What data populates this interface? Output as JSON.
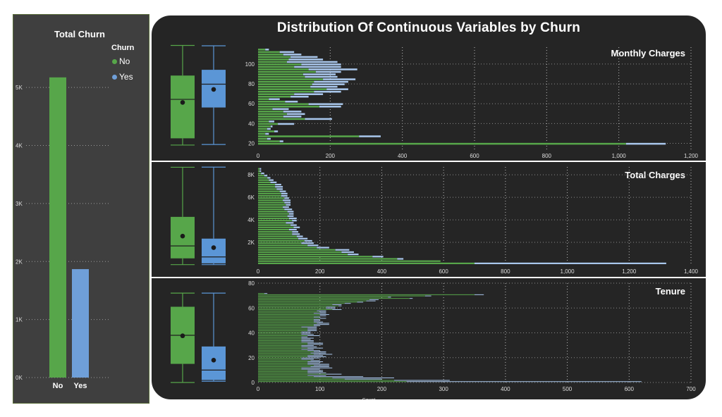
{
  "colors": {
    "no": "#57a64a",
    "yes": "#6f9fd8",
    "yes_light": "#a9c7ec",
    "panel": "#252525",
    "left_panel": "#3f3f3f",
    "grid": "#bdbdbd",
    "text": "#ffffff",
    "box_no": "#57a64a",
    "box_yes": "#5b96d6"
  },
  "main_title": "Distribution Of Continuous Variables by Churn",
  "total_churn": {
    "title": "Total Churn",
    "legend_title": "Churn",
    "legend": [
      "No",
      "Yes"
    ],
    "chart_data": {
      "type": "bar",
      "title": "Total Churn",
      "categories": [
        "No",
        "Yes"
      ],
      "values": [
        5174,
        1869
      ],
      "ylim": [
        0,
        5500
      ],
      "yticks": [
        0,
        1000,
        2000,
        3000,
        4000,
        5000
      ],
      "ytick_labels": [
        "0K",
        "1K",
        "2K",
        "3K",
        "4K",
        "5K"
      ],
      "grid": true
    }
  },
  "panels": [
    {
      "title": "Monthly Charges",
      "box": {
        "no": {
          "whisker_low": 18.3,
          "q1": 25.1,
          "median": 64.4,
          "q3": 88.4,
          "whisker_high": 118.8,
          "mean": 61.3
        },
        "yes": {
          "whisker_low": 18.9,
          "q1": 56.2,
          "median": 79.7,
          "q3": 94.2,
          "whisker_high": 118.4,
          "mean": 74.4
        }
      },
      "hist": {
        "type": "bar",
        "orientation": "horizontal",
        "y_start": 18,
        "y_step": 2.5,
        "no": [
          1020,
          60,
          25,
          280,
          20,
          45,
          25,
          35,
          55,
          30,
          130,
          70,
          80,
          70,
          40,
          170,
          140,
          75,
          30,
          90,
          100,
          155,
          190,
          145,
          150,
          155,
          180,
          130,
          125,
          160,
          140,
          100,
          120,
          80,
          85,
          90,
          70,
          60,
          20
        ],
        "yes": [
          110,
          10,
          10,
          60,
          10,
          10,
          10,
          5,
          45,
          15,
          75,
          50,
          50,
          50,
          45,
          60,
          95,
          35,
          30,
          50,
          80,
          75,
          60,
          75,
          90,
          95,
          90,
          90,
          90,
          70,
          135,
          130,
          110,
          140,
          95,
          75,
          50,
          40,
          10
        ],
        "xlim": [
          0,
          1200
        ],
        "xticks": [
          0,
          200,
          400,
          600,
          800,
          1000,
          1200
        ],
        "xtick_labels": [
          "0",
          "200",
          "400",
          "600",
          "800",
          "1,000",
          "1,200"
        ],
        "ylim": [
          14,
          117
        ],
        "yticks": [
          20,
          40,
          60,
          80,
          100
        ],
        "ytick_labels": [
          "20",
          "40",
          "60",
          "80",
          "100"
        ]
      }
    },
    {
      "title": "Total Charges",
      "box": {
        "no": {
          "whisker_low": 18.8,
          "q1": 577,
          "median": 1683,
          "q3": 4264,
          "whisker_high": 8672,
          "mean": 2555
        },
        "yes": {
          "whisker_low": 18.9,
          "q1": 134,
          "median": 704,
          "q3": 2331,
          "whisker_high": 8685,
          "mean": 1532
        }
      },
      "hist": {
        "type": "bar",
        "orientation": "horizontal",
        "y_start": 0,
        "y_step": 200,
        "no": [
          700,
          590,
          450,
          370,
          290,
          270,
          250,
          190,
          160,
          140,
          150,
          130,
          125,
          110,
          110,
          100,
          115,
          105,
          90,
          110,
          100,
          95,
          100,
          95,
          85,
          80,
          90,
          85,
          80,
          85,
          75,
          75,
          70,
          60,
          55,
          55,
          40,
          35,
          30,
          20,
          10,
          5,
          5
        ],
        "yes": [
          620,
          0,
          20,
          35,
          35,
          40,
          45,
          40,
          35,
          40,
          25,
          30,
          20,
          25,
          20,
          25,
          20,
          20,
          25,
          15,
          25,
          20,
          15,
          20,
          25,
          20,
          15,
          20,
          25,
          15,
          20,
          20,
          20,
          20,
          25,
          20,
          20,
          15,
          10,
          10,
          10,
          5,
          5
        ],
        "xlim": [
          0,
          1400
        ],
        "xticks": [
          0,
          200,
          400,
          600,
          800,
          1000,
          1200,
          1400
        ],
        "xtick_labels": [
          "0",
          "200",
          "400",
          "600",
          "800",
          "1,000",
          "1,200",
          "1,400"
        ],
        "ylim": [
          0,
          8700
        ],
        "yticks": [
          2000,
          4000,
          6000,
          8000
        ],
        "ytick_labels": [
          "2K",
          "4K",
          "6K",
          "8K"
        ]
      }
    },
    {
      "title": "Tenure",
      "axis_label": "Count",
      "box": {
        "no": {
          "whisker_low": 0,
          "q1": 15,
          "median": 38,
          "q3": 61,
          "whisker_high": 72,
          "mean": 37.6
        },
        "yes": {
          "whisker_low": 1,
          "q1": 2,
          "median": 10,
          "q3": 29,
          "whisker_high": 72,
          "mean": 18
        }
      },
      "hist": {
        "type": "bar",
        "orientation": "horizontal",
        "y_start": 0,
        "y_step": 1,
        "no": [
          240,
          220,
          140,
          120,
          90,
          80,
          110,
          80,
          80,
          80,
          70,
          70,
          85,
          90,
          80,
          80,
          80,
          85,
          70,
          70,
          80,
          80,
          90,
          85,
          90,
          80,
          70,
          80,
          70,
          70,
          80,
          80,
          70,
          70,
          70,
          70,
          70,
          80,
          70,
          70,
          70,
          80,
          80,
          80,
          70,
          90,
          90,
          95,
          90,
          90,
          90,
          100,
          90,
          100,
          100,
          90,
          100,
          95,
          120,
          110,
          110,
          130,
          120,
          140,
          160,
          175,
          180,
          245,
          210,
          270,
          350,
          10
        ],
        "yes": [
          380,
          90,
          60,
          100,
          80,
          30,
          25,
          30,
          25,
          25,
          30,
          50,
          30,
          25,
          35,
          20,
          25,
          15,
          20,
          30,
          30,
          25,
          30,
          25,
          20,
          20,
          20,
          25,
          25,
          20,
          25,
          25,
          20,
          20,
          15,
          20,
          10,
          20,
          20,
          15,
          15,
          15,
          15,
          15,
          25,
          10,
          25,
          20,
          15,
          10,
          10,
          10,
          10,
          10,
          15,
          20,
          10,
          15,
          15,
          15,
          15,
          5,
          15,
          10,
          10,
          15,
          15,
          5,
          5,
          10,
          15,
          5
        ],
        "xlim": [
          0,
          700
        ],
        "xticks": [
          0,
          100,
          200,
          300,
          400,
          500,
          600,
          700
        ],
        "xtick_labels": [
          "0",
          "100",
          "200",
          "300",
          "400",
          "500",
          "600",
          "700"
        ],
        "ylim": [
          0,
          80
        ],
        "yticks": [
          0,
          20,
          40,
          60,
          80
        ],
        "ytick_labels": [
          "0",
          "20",
          "40",
          "60",
          "80"
        ]
      }
    }
  ]
}
